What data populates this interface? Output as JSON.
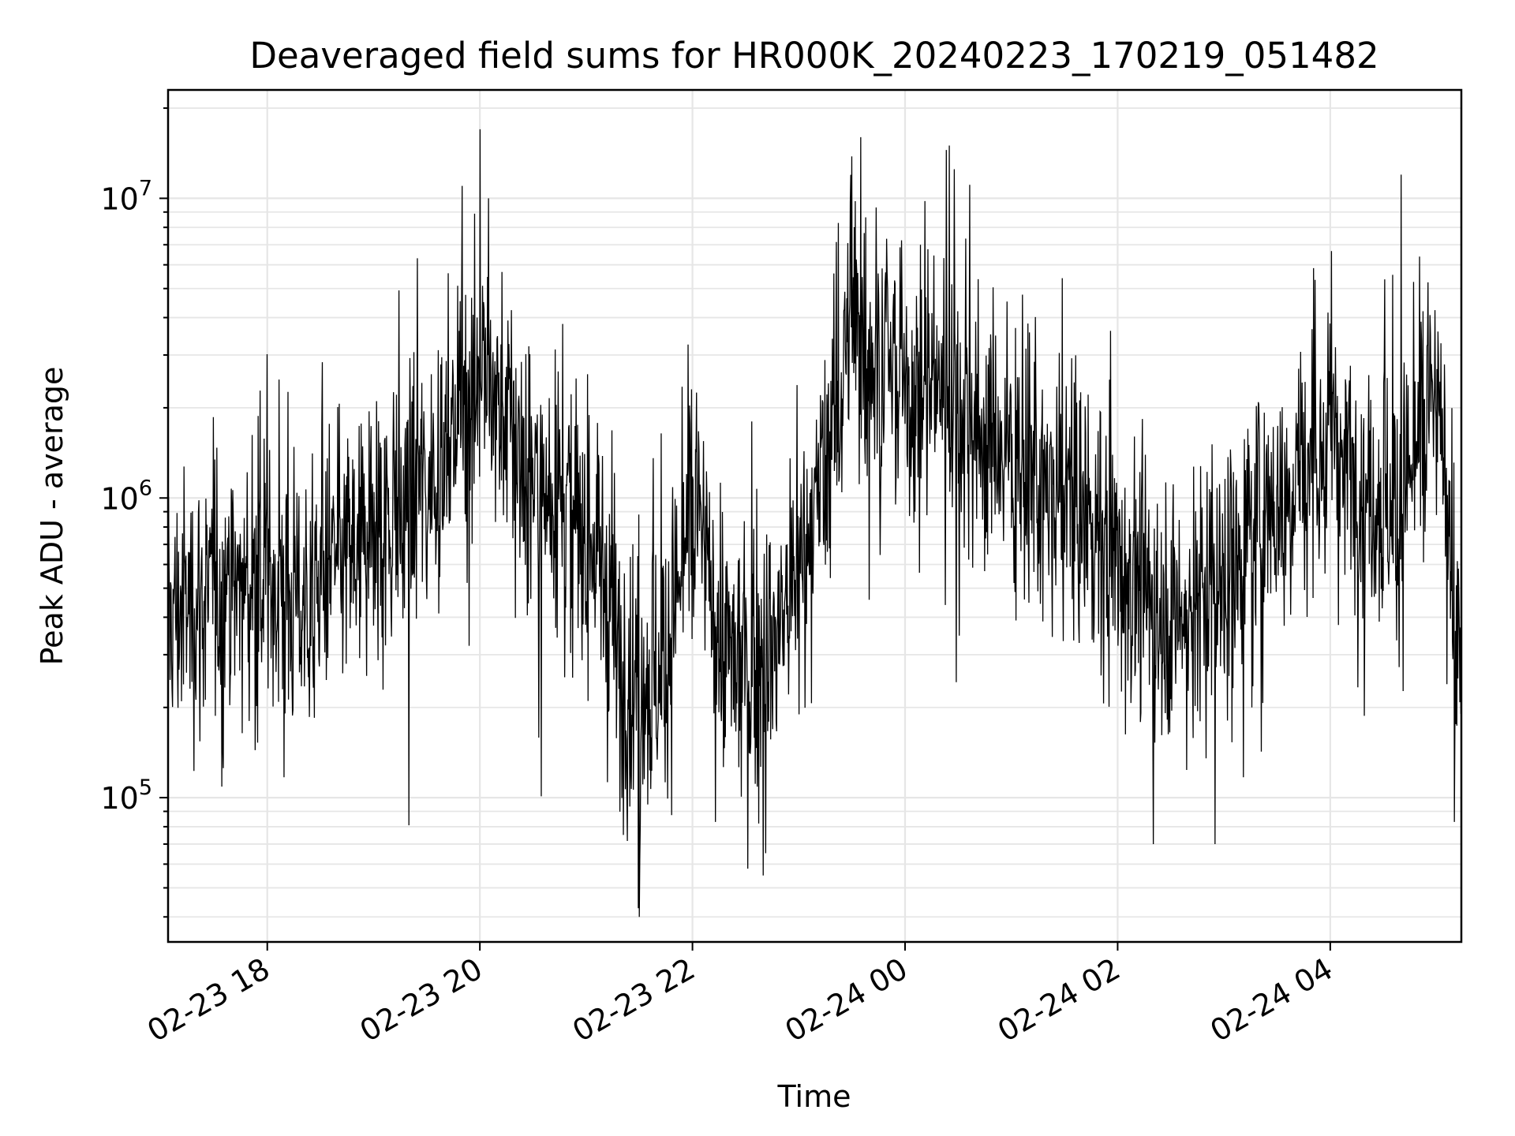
{
  "chart_data": {
    "type": "line",
    "title": "Deaveraged field sums for HR000K_20240223_170219_051482",
    "xlabel": "Time",
    "ylabel": "Peak ADU - average",
    "yscale": "log",
    "ylim": [
      33000,
      23000000
    ],
    "xlim": [
      "2024-02-23 17:04",
      "2024-02-24 05:14"
    ],
    "grid": true,
    "line_color": "#000000",
    "grid_color": "#e6e6e6",
    "x_ticks": [
      {
        "t": "2024-02-23 18:00",
        "label": "02-23 18"
      },
      {
        "t": "2024-02-23 20:00",
        "label": "02-23 20"
      },
      {
        "t": "2024-02-23 22:00",
        "label": "02-23 22"
      },
      {
        "t": "2024-02-24 00:00",
        "label": "02-24 00"
      },
      {
        "t": "2024-02-24 02:00",
        "label": "02-24 02"
      },
      {
        "t": "2024-02-24 04:00",
        "label": "02-24 04"
      }
    ],
    "y_ticks": [
      {
        "value": 100000,
        "base": "10",
        "exp": "5"
      },
      {
        "value": 1000000,
        "base": "10",
        "exp": "6"
      },
      {
        "value": 10000000,
        "base": "10",
        "exp": "7"
      }
    ],
    "series": [
      {
        "points": [
          [
            "2024-02-23 17:04",
            400000.0
          ],
          [
            "2024-02-23 17:20",
            450000.0
          ],
          [
            "2024-02-23 17:40",
            500000.0
          ],
          [
            "2024-02-23 18:00",
            500000.0
          ],
          [
            "2024-02-23 18:20",
            450000.0
          ],
          [
            "2024-02-23 18:40",
            600000.0
          ],
          [
            "2024-02-23 19:00",
            750000.0
          ],
          [
            "2024-02-23 19:20",
            900000.0
          ],
          [
            "2024-02-23 19:40",
            1500000.0
          ],
          [
            "2024-02-23 20:00",
            2800000.0
          ],
          [
            "2024-02-23 20:15",
            1800000.0
          ],
          [
            "2024-02-23 20:30",
            1200000.0
          ],
          [
            "2024-02-23 20:50",
            900000.0
          ],
          [
            "2024-02-23 21:10",
            600000.0
          ],
          [
            "2024-02-23 21:20",
            250000.0
          ],
          [
            "2024-02-23 21:40",
            250000.0
          ],
          [
            "2024-02-23 21:50",
            400000.0
          ],
          [
            "2024-02-23 22:00",
            1000000.0
          ],
          [
            "2024-02-23 22:10",
            500000.0
          ],
          [
            "2024-02-23 22:20",
            300000.0
          ],
          [
            "2024-02-23 22:40",
            280000.0
          ],
          [
            "2024-02-23 23:00",
            550000.0
          ],
          [
            "2024-02-23 23:15",
            1200000.0
          ],
          [
            "2024-02-23 23:30",
            3500000.0
          ],
          [
            "2024-02-23 23:45",
            3000000.0
          ],
          [
            "2024-02-24 00:00",
            2200000.0
          ],
          [
            "2024-02-24 00:20",
            2500000.0
          ],
          [
            "2024-02-24 00:40",
            1800000.0
          ],
          [
            "2024-02-24 01:00",
            1400000.0
          ],
          [
            "2024-02-24 01:20",
            1000000.0
          ],
          [
            "2024-02-24 01:40",
            900000.0
          ],
          [
            "2024-02-24 02:00",
            650000.0
          ],
          [
            "2024-02-24 02:20",
            450000.0
          ],
          [
            "2024-02-24 02:40",
            400000.0
          ],
          [
            "2024-02-24 03:00",
            550000.0
          ],
          [
            "2024-02-24 03:20",
            800000.0
          ],
          [
            "2024-02-24 03:40",
            1200000.0
          ],
          [
            "2024-02-24 04:00",
            1500000.0
          ],
          [
            "2024-02-24 04:20",
            1100000.0
          ],
          [
            "2024-02-24 04:40",
            900000.0
          ],
          [
            "2024-02-24 04:55",
            2000000.0
          ],
          [
            "2024-02-24 05:05",
            1500000.0
          ],
          [
            "2024-02-24 05:14",
            200000.0
          ]
        ],
        "spikes": [
          [
            "2024-02-23 19:50",
            11000000.0
          ],
          [
            "2024-02-23 20:00",
            17000000.0
          ],
          [
            "2024-02-23 20:05",
            10000000.0
          ],
          [
            "2024-02-23 21:30",
            40000.0
          ],
          [
            "2024-02-23 22:40",
            55000.0
          ],
          [
            "2024-02-23 23:35",
            16000000.0
          ],
          [
            "2024-02-24 00:25",
            15000000.0
          ],
          [
            "2024-02-24 02:20",
            70000.0
          ],
          [
            "2024-02-24 02:55",
            70000.0
          ],
          [
            "2024-02-24 04:40",
            12000000.0
          ],
          [
            "2024-02-24 05:10",
            83000.0
          ]
        ]
      }
    ]
  }
}
